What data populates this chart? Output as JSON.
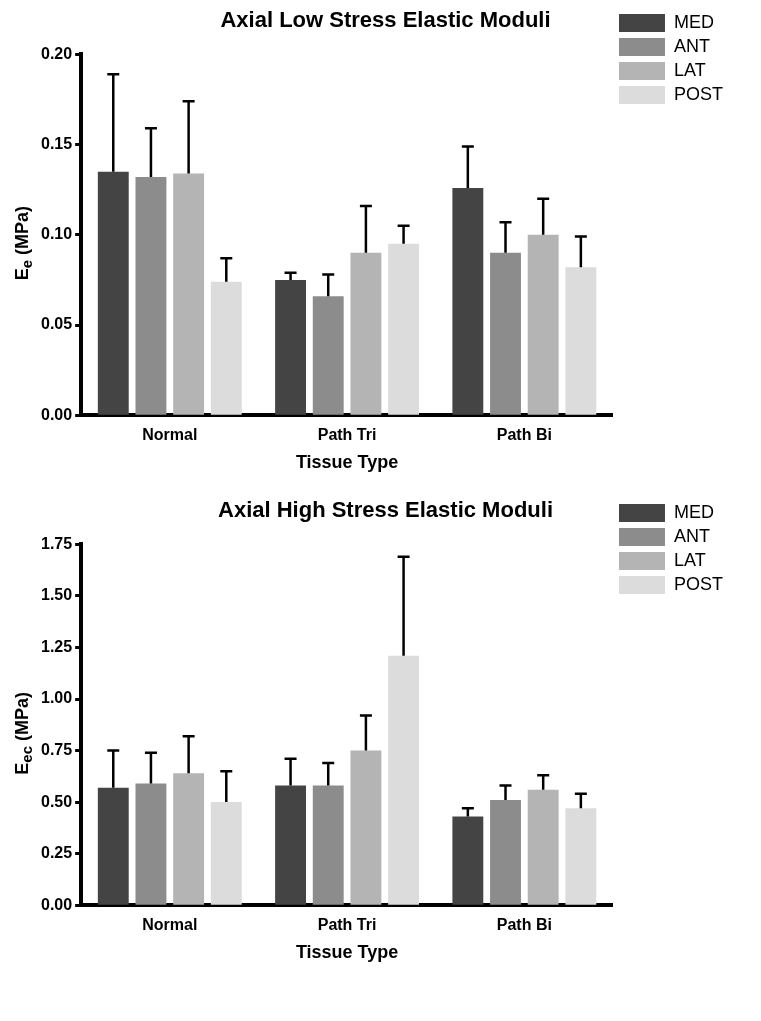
{
  "chart_data": [
    {
      "type": "bar",
      "title": "Axial Low Stress Elastic Moduli",
      "xlabel": "Tissue Type",
      "ylabel": "E$_{e}$ (MPa)",
      "categories": [
        "Normal",
        "Path Tri",
        "Path Bi"
      ],
      "ylim": [
        0,
        0.2
      ],
      "yticks": [
        {
          "value": 0,
          "label": "0.00"
        },
        {
          "value": 0.05,
          "label": "0.05"
        },
        {
          "value": 0.1,
          "label": "0.10"
        },
        {
          "value": 0.15,
          "label": "0.15"
        },
        {
          "value": 0.2,
          "label": "0.20"
        }
      ],
      "legend": "top right",
      "grid": false,
      "series": [
        {
          "name": "MED",
          "color": "#444444",
          "values": [
            0.135,
            0.075,
            0.126
          ],
          "errors": [
            [
              0.135,
              0.189
            ],
            [
              0.075,
              0.079
            ],
            [
              0.126,
              0.149
            ]
          ]
        },
        {
          "name": "ANT",
          "color": "#8c8c8c",
          "values": [
            0.132,
            0.066,
            0.09
          ],
          "errors": [
            [
              0.132,
              0.159
            ],
            [
              0.066,
              0.078
            ],
            [
              0.09,
              0.107
            ]
          ]
        },
        {
          "name": "LAT",
          "color": "#b4b4b4",
          "values": [
            0.134,
            0.09,
            0.1
          ],
          "errors": [
            [
              0.134,
              0.174
            ],
            [
              0.09,
              0.116
            ],
            [
              0.1,
              0.12
            ]
          ]
        },
        {
          "name": "POST",
          "color": "#dcdcdc",
          "values": [
            0.074,
            0.095,
            0.082
          ],
          "errors": [
            [
              0.074,
              0.087
            ],
            [
              0.095,
              0.105
            ],
            [
              0.082,
              0.099
            ]
          ]
        }
      ]
    },
    {
      "type": "bar",
      "title": "Axial High Stress Elastic Moduli",
      "xlabel": "Tissue Type",
      "ylabel": "E$_{ec}$ (MPa)",
      "categories": [
        "Normal",
        "Path Tri",
        "Path Bi"
      ],
      "ylim": [
        0,
        1.75
      ],
      "yticks": [
        {
          "value": 0,
          "label": "0.00"
        },
        {
          "value": 0.25,
          "label": "0.25"
        },
        {
          "value": 0.5,
          "label": "0.50"
        },
        {
          "value": 0.75,
          "label": "0.75"
        },
        {
          "value": 1,
          "label": "1.00"
        },
        {
          "value": 1.25,
          "label": "1.25"
        },
        {
          "value": 1.5,
          "label": "1.50"
        },
        {
          "value": 1.75,
          "label": "1.75"
        }
      ],
      "legend": "top right",
      "grid": false,
      "series": [
        {
          "name": "MED",
          "color": "#444444",
          "values": [
            0.57,
            0.58,
            0.43
          ],
          "errors": [
            [
              0.57,
              0.75
            ],
            [
              0.58,
              0.71
            ],
            [
              0.43,
              0.47
            ]
          ]
        },
        {
          "name": "ANT",
          "color": "#8c8c8c",
          "values": [
            0.59,
            0.58,
            0.51
          ],
          "errors": [
            [
              0.59,
              0.74
            ],
            [
              0.58,
              0.69
            ],
            [
              0.51,
              0.58
            ]
          ]
        },
        {
          "name": "LAT",
          "color": "#b4b4b4",
          "values": [
            0.64,
            0.75,
            0.56
          ],
          "errors": [
            [
              0.64,
              0.82
            ],
            [
              0.75,
              0.92
            ],
            [
              0.56,
              0.63
            ]
          ]
        },
        {
          "name": "POST",
          "color": "#dcdcdc",
          "values": [
            0.5,
            1.21,
            0.47
          ],
          "errors": [
            [
              0.5,
              0.65
            ],
            [
              1.21,
              1.69
            ],
            [
              0.47,
              0.54
            ]
          ]
        }
      ]
    }
  ]
}
